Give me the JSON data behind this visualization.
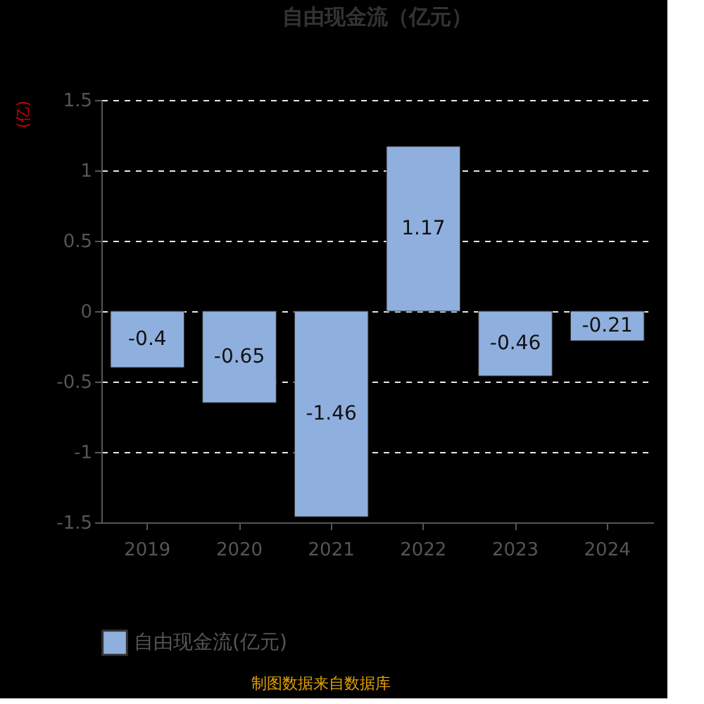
{
  "chart_data": {
    "type": "bar",
    "title": "自由现金流（亿元）",
    "ylabel": "(亿)",
    "categories": [
      "2019",
      "2020",
      "2021",
      "2022",
      "2023",
      "2024"
    ],
    "series": [
      {
        "name": "自由现金流(亿元)",
        "color": "#8fb0de",
        "values": [
          -0.4,
          -0.65,
          -1.46,
          1.17,
          -0.46,
          -0.21
        ]
      }
    ],
    "ylim": [
      -1.5,
      1.5
    ],
    "yticks": [
      -1.5,
      -1,
      -0.5,
      0,
      0.5,
      1,
      1.5
    ],
    "grid": "y",
    "legend": "bottom",
    "data_labels": true,
    "annotations": [
      "制图数据来自数据库"
    ]
  }
}
